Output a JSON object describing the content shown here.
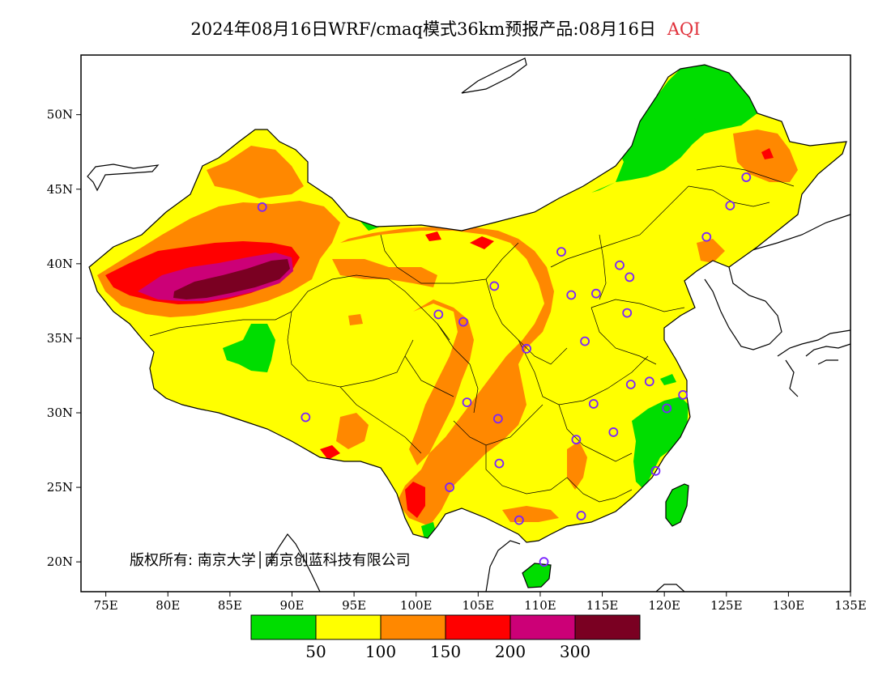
{
  "title": {
    "main": "2024年08月16日WRF/cmaq模式36km预报产品:08月16日",
    "variable": "AQI"
  },
  "copyright": "版权所有: 南京大学│南京创蓝科技有限公司",
  "axes": {
    "x_ticks": [
      "75E",
      "80E",
      "85E",
      "90E",
      "95E",
      "100E",
      "105E",
      "110E",
      "115E",
      "120E",
      "125E",
      "130E",
      "135E"
    ],
    "y_ticks": [
      "50N",
      "45N",
      "40N",
      "35N",
      "30N",
      "25N",
      "20N"
    ]
  },
  "legend": {
    "colors": [
      "#00dd00",
      "#ffff00",
      "#ff8800",
      "#ff0000",
      "#cc0077",
      "#7a0022"
    ],
    "labels": [
      "50",
      "100",
      "150",
      "200",
      "300"
    ]
  },
  "chart_data": {
    "type": "heatmap",
    "variable": "AQI",
    "xlim": [
      73,
      135
    ],
    "ylim": [
      18,
      54
    ],
    "color_bins": [
      {
        "range": [
          0,
          50
        ],
        "color": "#00dd00"
      },
      {
        "range": [
          50,
          100
        ],
        "color": "#ffff00"
      },
      {
        "range": [
          100,
          150
        ],
        "color": "#ff8800"
      },
      {
        "range": [
          150,
          200
        ],
        "color": "#ff0000"
      },
      {
        "range": [
          200,
          300
        ],
        "color": "#cc0077"
      },
      {
        "range": [
          300,
          500
        ],
        "color": "#7a0022"
      }
    ],
    "stations": [
      {
        "lon": 87.6,
        "lat": 43.8
      },
      {
        "lon": 91.1,
        "lat": 29.7
      },
      {
        "lon": 101.8,
        "lat": 36.6
      },
      {
        "lon": 103.8,
        "lat": 36.1
      },
      {
        "lon": 106.3,
        "lat": 38.5
      },
      {
        "lon": 111.7,
        "lat": 40.8
      },
      {
        "lon": 104.1,
        "lat": 30.7
      },
      {
        "lon": 106.6,
        "lat": 29.6
      },
      {
        "lon": 108.9,
        "lat": 34.3
      },
      {
        "lon": 112.5,
        "lat": 37.9
      },
      {
        "lon": 114.5,
        "lat": 38.0
      },
      {
        "lon": 116.4,
        "lat": 39.9
      },
      {
        "lon": 117.2,
        "lat": 39.1
      },
      {
        "lon": 117.0,
        "lat": 36.7
      },
      {
        "lon": 113.6,
        "lat": 34.8
      },
      {
        "lon": 117.3,
        "lat": 31.9
      },
      {
        "lon": 118.8,
        "lat": 32.1
      },
      {
        "lon": 121.5,
        "lat": 31.2
      },
      {
        "lon": 120.2,
        "lat": 30.3
      },
      {
        "lon": 114.3,
        "lat": 30.6
      },
      {
        "lon": 112.9,
        "lat": 28.2
      },
      {
        "lon": 115.9,
        "lat": 28.7
      },
      {
        "lon": 119.3,
        "lat": 26.1
      },
      {
        "lon": 113.3,
        "lat": 23.1
      },
      {
        "lon": 108.3,
        "lat": 22.8
      },
      {
        "lon": 110.3,
        "lat": 20.0
      },
      {
        "lon": 106.7,
        "lat": 26.6
      },
      {
        "lon": 102.7,
        "lat": 25.0
      },
      {
        "lon": 123.4,
        "lat": 41.8
      },
      {
        "lon": 125.3,
        "lat": 43.9
      },
      {
        "lon": 126.6,
        "lat": 45.8
      }
    ]
  }
}
